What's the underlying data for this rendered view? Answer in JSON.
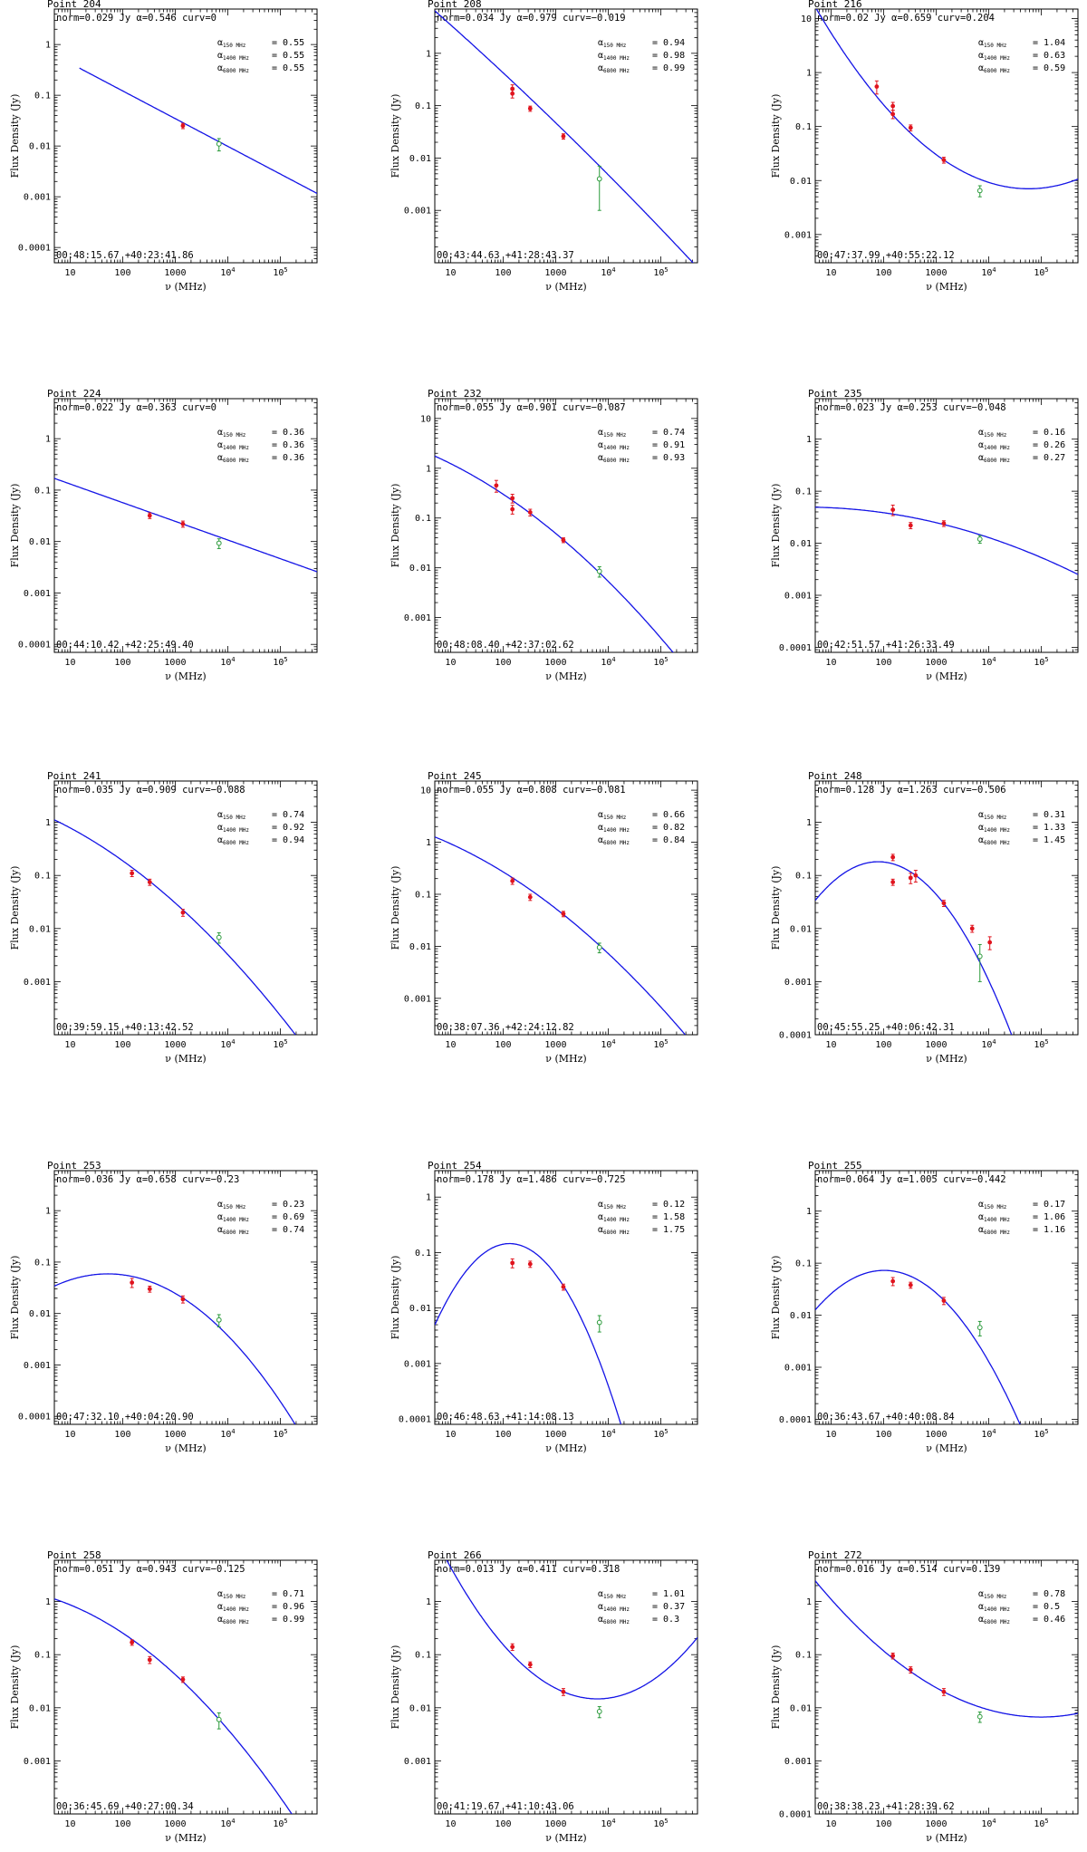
{
  "axes": {
    "xlabel": "ν (MHz)",
    "ylabel": "Flux Density (Jy)",
    "alpha_labels": [
      "α",
      "150 MHz",
      "1400 MHz",
      "6800 MHz"
    ]
  },
  "colors": {
    "model": "#1414e6",
    "data_red": "#e0141e",
    "data_green": "#2a9a3a",
    "axis": "#000000"
  },
  "chart_data": [
    {
      "type": "line",
      "title": "Point 204",
      "norm": "0.029",
      "alpha": "0.546",
      "curv": "0",
      "a150": "0.55",
      "a1400": "0.55",
      "a6800": "0.55",
      "coord": "00:48:15.67 +40:23:41.86",
      "xlim": [
        5,
        500000
      ],
      "ylim": [
        5e-05,
        5
      ],
      "yticks": [
        {
          "v": 1,
          "t": "1"
        },
        {
          "v": 0.1,
          "t": "0.1"
        },
        {
          "v": 0.01,
          "t": "0.01"
        },
        {
          "v": 0.001,
          "t": "0.001"
        },
        {
          "v": 0.0001,
          "t": "0.0001"
        }
      ],
      "model": {
        "x0": 15,
        "x1": 500000,
        "logS1400": -1.54,
        "alpha": 0.546,
        "curv": 0
      },
      "points": [
        {
          "x": 1400,
          "y": 0.025,
          "err": 0.003,
          "c": "red"
        },
        {
          "x": 6800,
          "y": 0.011,
          "err": 0.003,
          "c": "green"
        }
      ]
    },
    {
      "type": "line",
      "title": "Point 208",
      "norm": "0.034",
      "alpha": "0.979",
      "curv": "−0.019",
      "a150": "0.94",
      "a1400": "0.98",
      "a6800": "0.99",
      "coord": "00:43:44.63 +41:28:43.37",
      "xlim": [
        5,
        500000
      ],
      "ylim": [
        0.0001,
        7
      ],
      "yticks": [
        {
          "v": 1,
          "t": "1"
        },
        {
          "v": 0.1,
          "t": "0.1"
        },
        {
          "v": 0.01,
          "t": "0.01"
        },
        {
          "v": 0.001,
          "t": "0.001"
        }
      ],
      "model": {
        "x0": 5,
        "x1": 500000,
        "logS1400": -1.47,
        "alpha": 0.979,
        "curv": -0.019
      },
      "points": [
        {
          "x": 150,
          "y": 0.21,
          "err": 0.04,
          "c": "red"
        },
        {
          "x": 150,
          "y": 0.17,
          "err": 0.03,
          "c": "red"
        },
        {
          "x": 327,
          "y": 0.088,
          "err": 0.01,
          "c": "red"
        },
        {
          "x": 1400,
          "y": 0.026,
          "err": 0.003,
          "c": "red"
        },
        {
          "x": 6800,
          "y": 0.004,
          "err": 0.003,
          "c": "green"
        }
      ]
    },
    {
      "type": "line",
      "title": "Point 216",
      "norm": "0.02",
      "alpha": "0.659",
      "curv": "0.204",
      "a150": "1.04",
      "a1400": "0.63",
      "a6800": "0.59",
      "coord": "00:47:37.99 +40:55:22.12",
      "xlim": [
        5,
        500000
      ],
      "ylim": [
        0.0003,
        15
      ],
      "yticks": [
        {
          "v": 10,
          "t": "10"
        },
        {
          "v": 1,
          "t": "1"
        },
        {
          "v": 0.1,
          "t": "0.1"
        },
        {
          "v": 0.01,
          "t": "0.01"
        },
        {
          "v": 0.001,
          "t": "0.001"
        }
      ],
      "model": {
        "x0": 5,
        "x1": 500000,
        "logS1400": -1.62,
        "alpha": 0.659,
        "curv": 0.204
      },
      "points": [
        {
          "x": 74,
          "y": 0.55,
          "err": 0.15,
          "c": "red"
        },
        {
          "x": 150,
          "y": 0.24,
          "err": 0.04,
          "c": "red"
        },
        {
          "x": 150,
          "y": 0.17,
          "err": 0.03,
          "c": "red"
        },
        {
          "x": 327,
          "y": 0.095,
          "err": 0.012,
          "c": "red"
        },
        {
          "x": 1400,
          "y": 0.024,
          "err": 0.003,
          "c": "red"
        },
        {
          "x": 6800,
          "y": 0.0065,
          "err": 0.0015,
          "c": "green"
        }
      ]
    },
    {
      "type": "line",
      "title": "Point 224",
      "norm": "0.022",
      "alpha": "0.363",
      "curv": "0",
      "a150": "0.36",
      "a1400": "0.36",
      "a6800": "0.36",
      "coord": "00:44:10.42 +42:25:49.40",
      "xlim": [
        5,
        500000
      ],
      "ylim": [
        7e-05,
        6
      ],
      "yticks": [
        {
          "v": 1,
          "t": "1"
        },
        {
          "v": 0.1,
          "t": "0.1"
        },
        {
          "v": 0.01,
          "t": "0.01"
        },
        {
          "v": 0.001,
          "t": "0.001"
        },
        {
          "v": 0.0001,
          "t": "0.0001"
        }
      ],
      "model": {
        "x0": 5,
        "x1": 500000,
        "logS1400": -1.66,
        "alpha": 0.363,
        "curv": 0
      },
      "points": [
        {
          "x": 327,
          "y": 0.032,
          "err": 0.004,
          "c": "red"
        },
        {
          "x": 1400,
          "y": 0.022,
          "err": 0.003,
          "c": "red"
        },
        {
          "x": 6800,
          "y": 0.0093,
          "err": 0.002,
          "c": "green"
        }
      ]
    },
    {
      "type": "line",
      "title": "Point 232",
      "norm": "0.055",
      "alpha": "0.901",
      "curv": "−0.087",
      "a150": "0.74",
      "a1400": "0.91",
      "a6800": "0.93",
      "coord": "00:48:08.40 +42:37:02.62",
      "xlim": [
        5,
        500000
      ],
      "ylim": [
        0.0002,
        25
      ],
      "yticks": [
        {
          "v": 10,
          "t": "10"
        },
        {
          "v": 1,
          "t": "1"
        },
        {
          "v": 0.1,
          "t": "0.1"
        },
        {
          "v": 0.01,
          "t": "0.01"
        },
        {
          "v": 0.001,
          "t": "0.001"
        }
      ],
      "model": {
        "x0": 5,
        "x1": 500000,
        "logS1400": -1.44,
        "alpha": 0.901,
        "curv": -0.087
      },
      "points": [
        {
          "x": 74,
          "y": 0.45,
          "err": 0.12,
          "c": "red"
        },
        {
          "x": 150,
          "y": 0.25,
          "err": 0.05,
          "c": "red"
        },
        {
          "x": 150,
          "y": 0.15,
          "err": 0.03,
          "c": "red"
        },
        {
          "x": 327,
          "y": 0.13,
          "err": 0.02,
          "c": "red"
        },
        {
          "x": 1400,
          "y": 0.036,
          "err": 0.004,
          "c": "red"
        },
        {
          "x": 6800,
          "y": 0.0085,
          "err": 0.002,
          "c": "green"
        }
      ]
    },
    {
      "type": "line",
      "title": "Point 235",
      "norm": "0.023",
      "alpha": "0.253",
      "curv": "−0.048",
      "a150": "0.16",
      "a1400": "0.26",
      "a6800": "0.27",
      "coord": "00:42:51.57 +41:26:33.49",
      "xlim": [
        5,
        500000
      ],
      "ylim": [
        8e-05,
        6
      ],
      "yticks": [
        {
          "v": 1,
          "t": "1"
        },
        {
          "v": 0.1,
          "t": "0.1"
        },
        {
          "v": 0.01,
          "t": "0.01"
        },
        {
          "v": 0.001,
          "t": "0.001"
        },
        {
          "v": 0.0001,
          "t": "0.0001"
        }
      ],
      "model": {
        "x0": 5,
        "x1": 500000,
        "logS1400": -1.64,
        "alpha": 0.253,
        "curv": -0.048
      },
      "points": [
        {
          "x": 150,
          "y": 0.044,
          "err": 0.01,
          "c": "red"
        },
        {
          "x": 327,
          "y": 0.022,
          "err": 0.003,
          "c": "red"
        },
        {
          "x": 1400,
          "y": 0.024,
          "err": 0.003,
          "c": "red"
        },
        {
          "x": 6800,
          "y": 0.012,
          "err": 0.002,
          "c": "green"
        }
      ]
    },
    {
      "type": "line",
      "title": "Point 241",
      "norm": "0.035",
      "alpha": "0.909",
      "curv": "−0.088",
      "a150": "0.74",
      "a1400": "0.92",
      "a6800": "0.94",
      "coord": "00:39:59.15 +40:13:42.52",
      "xlim": [
        5,
        500000
      ],
      "ylim": [
        0.0001,
        6
      ],
      "yticks": [
        {
          "v": 1,
          "t": "1"
        },
        {
          "v": 0.1,
          "t": "0.1"
        },
        {
          "v": 0.01,
          "t": "0.01"
        },
        {
          "v": 0.001,
          "t": "0.001"
        }
      ],
      "model": {
        "x0": 5,
        "x1": 500000,
        "logS1400": -1.65,
        "alpha": 0.909,
        "curv": -0.088
      },
      "points": [
        {
          "x": 150,
          "y": 0.11,
          "err": 0.015,
          "c": "red"
        },
        {
          "x": 327,
          "y": 0.075,
          "err": 0.01,
          "c": "red"
        },
        {
          "x": 1400,
          "y": 0.02,
          "err": 0.003,
          "c": "red"
        },
        {
          "x": 6800,
          "y": 0.0068,
          "err": 0.0015,
          "c": "green"
        }
      ]
    },
    {
      "type": "line",
      "title": "Point 245",
      "norm": "0.055",
      "alpha": "0.808",
      "curv": "−0.081",
      "a150": "0.66",
      "a1400": "0.82",
      "a6800": "0.84",
      "coord": "00:38:07.36 +42:24:12.82",
      "xlim": [
        5,
        500000
      ],
      "ylim": [
        0.0002,
        15
      ],
      "yticks": [
        {
          "v": 10,
          "t": "10"
        },
        {
          "v": 1,
          "t": "1"
        },
        {
          "v": 0.1,
          "t": "0.1"
        },
        {
          "v": 0.01,
          "t": "0.01"
        },
        {
          "v": 0.001,
          "t": "0.001"
        }
      ],
      "model": {
        "x0": 5,
        "x1": 500000,
        "logS1400": -1.39,
        "alpha": 0.808,
        "curv": -0.081
      },
      "points": [
        {
          "x": 150,
          "y": 0.18,
          "err": 0.025,
          "c": "red"
        },
        {
          "x": 327,
          "y": 0.088,
          "err": 0.012,
          "c": "red"
        },
        {
          "x": 1400,
          "y": 0.042,
          "err": 0.005,
          "c": "red"
        },
        {
          "x": 6800,
          "y": 0.0095,
          "err": 0.002,
          "c": "green"
        }
      ]
    },
    {
      "type": "line",
      "title": "Point 248",
      "norm": "0.128",
      "alpha": "1.263",
      "curv": "−0.506",
      "a150": "0.31",
      "a1400": "1.33",
      "a6800": "1.45",
      "coord": "00:45:55.25 +40:06:42.31",
      "xlim": [
        5,
        500000
      ],
      "ylim": [
        0.0001,
        6
      ],
      "yticks": [
        {
          "v": 1,
          "t": "1"
        },
        {
          "v": 0.1,
          "t": "0.1"
        },
        {
          "v": 0.01,
          "t": "0.01"
        },
        {
          "v": 0.001,
          "t": "0.001"
        },
        {
          "v": 0.0001,
          "t": "0.0001"
        }
      ],
      "model": {
        "x0": 5,
        "x1": 500000,
        "logS1400": -1.53,
        "alpha": 1.263,
        "curv": -0.506
      },
      "points": [
        {
          "x": 150,
          "y": 0.22,
          "err": 0.03,
          "c": "red"
        },
        {
          "x": 150,
          "y": 0.075,
          "err": 0.01,
          "c": "red"
        },
        {
          "x": 327,
          "y": 0.09,
          "err": 0.02,
          "c": "red"
        },
        {
          "x": 408,
          "y": 0.1,
          "err": 0.025,
          "c": "red"
        },
        {
          "x": 1400,
          "y": 0.03,
          "err": 0.004,
          "c": "red"
        },
        {
          "x": 4850,
          "y": 0.01,
          "err": 0.0015,
          "c": "red"
        },
        {
          "x": 10500,
          "y": 0.0055,
          "err": 0.0015,
          "c": "red"
        },
        {
          "x": 6800,
          "y": 0.003,
          "err": 0.002,
          "c": "green"
        }
      ]
    },
    {
      "type": "line",
      "title": "Point 253",
      "norm": "0.036",
      "alpha": "0.658",
      "curv": "−0.23",
      "a150": "0.23",
      "a1400": "0.69",
      "a6800": "0.74",
      "coord": "00:47:32.10 +40:04:20.90",
      "xlim": [
        5,
        500000
      ],
      "ylim": [
        7e-05,
        6
      ],
      "yticks": [
        {
          "v": 1,
          "t": "1"
        },
        {
          "v": 0.1,
          "t": "0.1"
        },
        {
          "v": 0.01,
          "t": "0.01"
        },
        {
          "v": 0.001,
          "t": "0.001"
        },
        {
          "v": 0.0001,
          "t": "0.0001"
        }
      ],
      "model": {
        "x0": 5,
        "x1": 500000,
        "logS1400": -1.7,
        "alpha": 0.658,
        "curv": -0.23
      },
      "points": [
        {
          "x": 150,
          "y": 0.04,
          "err": 0.008,
          "c": "red"
        },
        {
          "x": 327,
          "y": 0.03,
          "err": 0.004,
          "c": "red"
        },
        {
          "x": 1400,
          "y": 0.019,
          "err": 0.003,
          "c": "red"
        },
        {
          "x": 6800,
          "y": 0.0075,
          "err": 0.002,
          "c": "green"
        }
      ]
    },
    {
      "type": "line",
      "title": "Point 254",
      "norm": "0.178",
      "alpha": "1.486",
      "curv": "−0.725",
      "a150": "0.12",
      "a1400": "1.58",
      "a6800": "1.75",
      "coord": "00:46:48.63 +41:14:08.13",
      "xlim": [
        5,
        500000
      ],
      "ylim": [
        8e-05,
        3
      ],
      "yticks": [
        {
          "v": 1,
          "t": "1"
        },
        {
          "v": 0.1,
          "t": "0.1"
        },
        {
          "v": 0.01,
          "t": "0.01"
        },
        {
          "v": 0.001,
          "t": "0.001"
        },
        {
          "v": 0.0001,
          "t": "0.0001"
        }
      ],
      "model": {
        "x0": 5,
        "x1": 500000,
        "logS1400": -1.6,
        "alpha": 1.486,
        "curv": -0.725
      },
      "points": [
        {
          "x": 150,
          "y": 0.065,
          "err": 0.012,
          "c": "red"
        },
        {
          "x": 327,
          "y": 0.062,
          "err": 0.008,
          "c": "red"
        },
        {
          "x": 1400,
          "y": 0.024,
          "err": 0.003,
          "c": "red"
        },
        {
          "x": 6800,
          "y": 0.0055,
          "err": 0.0018,
          "c": "green"
        }
      ]
    },
    {
      "type": "line",
      "title": "Point 255",
      "norm": "0.064",
      "alpha": "1.005",
      "curv": "−0.442",
      "a150": "0.17",
      "a1400": "1.06",
      "a6800": "1.16",
      "coord": "00:36:43.67 +40:40:08.84",
      "xlim": [
        5,
        500000
      ],
      "ylim": [
        8e-05,
        6
      ],
      "yticks": [
        {
          "v": 1,
          "t": "1"
        },
        {
          "v": 0.1,
          "t": "0.1"
        },
        {
          "v": 0.01,
          "t": "0.01"
        },
        {
          "v": 0.001,
          "t": "0.001"
        },
        {
          "v": 0.0001,
          "t": "0.0001"
        }
      ],
      "model": {
        "x0": 5,
        "x1": 500000,
        "logS1400": -1.71,
        "alpha": 1.005,
        "curv": -0.442
      },
      "points": [
        {
          "x": 150,
          "y": 0.045,
          "err": 0.008,
          "c": "red"
        },
        {
          "x": 327,
          "y": 0.038,
          "err": 0.005,
          "c": "red"
        },
        {
          "x": 1400,
          "y": 0.019,
          "err": 0.003,
          "c": "red"
        },
        {
          "x": 6800,
          "y": 0.0058,
          "err": 0.0018,
          "c": "green"
        }
      ]
    },
    {
      "type": "line",
      "title": "Point 258",
      "norm": "0.051",
      "alpha": "0.943",
      "curv": "−0.125",
      "a150": "0.71",
      "a1400": "0.96",
      "a6800": "0.99",
      "coord": "00:36:45.69 +40:27:00.34",
      "xlim": [
        5,
        500000
      ],
      "ylim": [
        0.0001,
        6
      ],
      "yticks": [
        {
          "v": 1,
          "t": "1"
        },
        {
          "v": 0.1,
          "t": "0.1"
        },
        {
          "v": 0.01,
          "t": "0.01"
        },
        {
          "v": 0.001,
          "t": "0.001"
        }
      ],
      "model": {
        "x0": 5,
        "x1": 500000,
        "logS1400": -1.51,
        "alpha": 0.943,
        "curv": -0.125
      },
      "points": [
        {
          "x": 150,
          "y": 0.17,
          "err": 0.02,
          "c": "red"
        },
        {
          "x": 327,
          "y": 0.08,
          "err": 0.012,
          "c": "red"
        },
        {
          "x": 1400,
          "y": 0.034,
          "err": 0.004,
          "c": "red"
        },
        {
          "x": 6800,
          "y": 0.006,
          "err": 0.002,
          "c": "green"
        }
      ]
    },
    {
      "type": "line",
      "title": "Point 266",
      "norm": "0.013",
      "alpha": "0.411",
      "curv": "0.318",
      "a150": "1.01",
      "a1400": "0.37",
      "a6800": "0.3",
      "coord": "00:41:19.67 +41:10:43.06",
      "xlim": [
        5,
        500000
      ],
      "ylim": [
        0.0001,
        6
      ],
      "yticks": [
        {
          "v": 1,
          "t": "1"
        },
        {
          "v": 0.1,
          "t": "0.1"
        },
        {
          "v": 0.01,
          "t": "0.01"
        },
        {
          "v": 0.001,
          "t": "0.001"
        }
      ],
      "model": {
        "x0": 5,
        "x1": 500000,
        "logS1400": -1.7,
        "alpha": 0.411,
        "curv": 0.318
      },
      "points": [
        {
          "x": 150,
          "y": 0.14,
          "err": 0.02,
          "c": "red"
        },
        {
          "x": 327,
          "y": 0.065,
          "err": 0.008,
          "c": "red"
        },
        {
          "x": 1400,
          "y": 0.02,
          "err": 0.003,
          "c": "red"
        },
        {
          "x": 6800,
          "y": 0.0085,
          "err": 0.002,
          "c": "green"
        }
      ]
    },
    {
      "type": "line",
      "title": "Point 272",
      "norm": "0.016",
      "alpha": "0.514",
      "curv": "0.139",
      "a150": "0.78",
      "a1400": "0.5",
      "a6800": "0.46",
      "coord": "00:38:38.23 +41:28:39.62",
      "xlim": [
        5,
        500000
      ],
      "ylim": [
        0.0001,
        6
      ],
      "yticks": [
        {
          "v": 1,
          "t": "1"
        },
        {
          "v": 0.1,
          "t": "0.1"
        },
        {
          "v": 0.01,
          "t": "0.01"
        },
        {
          "v": 0.001,
          "t": "0.001"
        },
        {
          "v": 0.0001,
          "t": "0.0001"
        }
      ],
      "model": {
        "x0": 5,
        "x1": 500000,
        "logS1400": -1.7,
        "alpha": 0.514,
        "curv": 0.139
      },
      "points": [
        {
          "x": 150,
          "y": 0.095,
          "err": 0.012,
          "c": "red"
        },
        {
          "x": 327,
          "y": 0.052,
          "err": 0.007,
          "c": "red"
        },
        {
          "x": 1400,
          "y": 0.02,
          "err": 0.003,
          "c": "red"
        },
        {
          "x": 6800,
          "y": 0.0068,
          "err": 0.0015,
          "c": "green"
        }
      ]
    }
  ]
}
